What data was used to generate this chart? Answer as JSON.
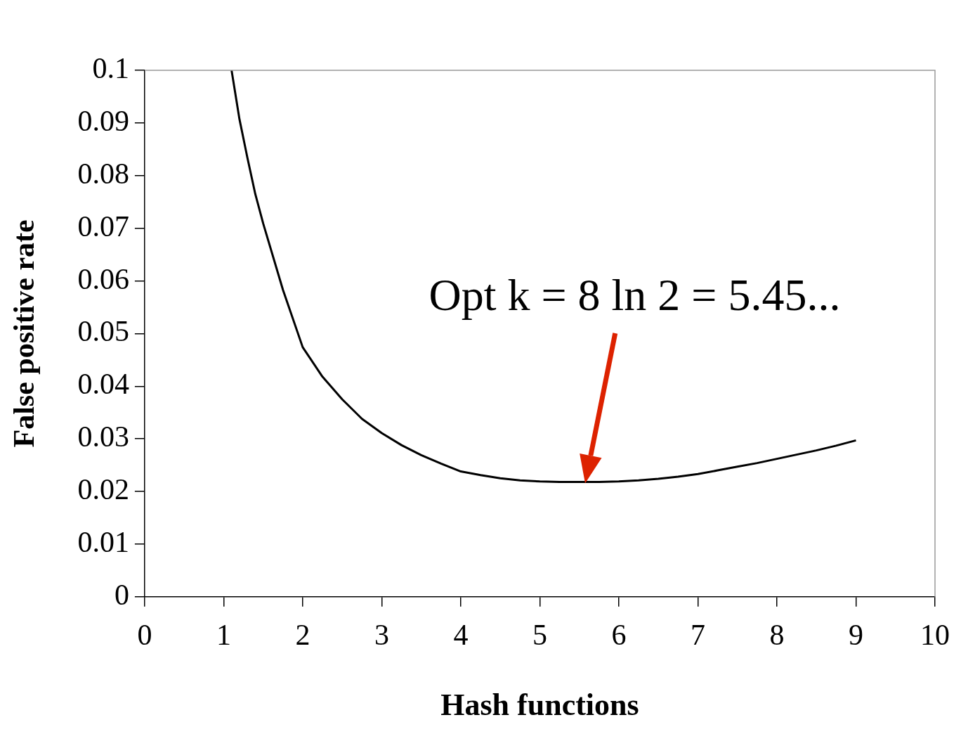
{
  "chart_data": {
    "type": "line",
    "xlabel": "Hash functions",
    "ylabel": "False positive rate",
    "x": [
      1.1,
      1.2,
      1.3,
      1.4,
      1.5,
      1.75,
      2,
      2.25,
      2.5,
      2.75,
      3,
      3.25,
      3.5,
      3.75,
      4,
      4.25,
      4.5,
      4.75,
      5,
      5.25,
      5.5,
      5.75,
      6,
      6.25,
      6.5,
      6.75,
      7,
      7.25,
      7.5,
      7.75,
      8,
      8.25,
      8.5,
      8.75,
      9
    ],
    "series": [
      {
        "color": "#000000",
        "values": [
          0.1,
          0.0907,
          0.0834,
          0.0765,
          0.0709,
          0.0583,
          0.0474,
          0.0418,
          0.0375,
          0.0338,
          0.0311,
          0.0288,
          0.0269,
          0.0253,
          0.0238,
          0.0231,
          0.0225,
          0.0221,
          0.0219,
          0.0218,
          0.0218,
          0.0218,
          0.0219,
          0.0221,
          0.0224,
          0.0228,
          0.0233,
          0.024,
          0.0247,
          0.0254,
          0.0262,
          0.027,
          0.0278,
          0.0287,
          0.0297
        ]
      }
    ],
    "xlim": [
      0,
      10
    ],
    "xticks": [
      0,
      1,
      2,
      3,
      4,
      5,
      6,
      7,
      8,
      9,
      10
    ],
    "ylim": [
      0,
      0.1
    ],
    "yticks": [
      0,
      0.01,
      0.02,
      0.03,
      0.04,
      0.05,
      0.06,
      0.07,
      0.08,
      0.09,
      0.1
    ],
    "grid": false,
    "legend": false,
    "marker": "none",
    "line_style": "solid",
    "annotations": [
      "Opt k = 8 ln 2 = 5.45..."
    ]
  }
}
